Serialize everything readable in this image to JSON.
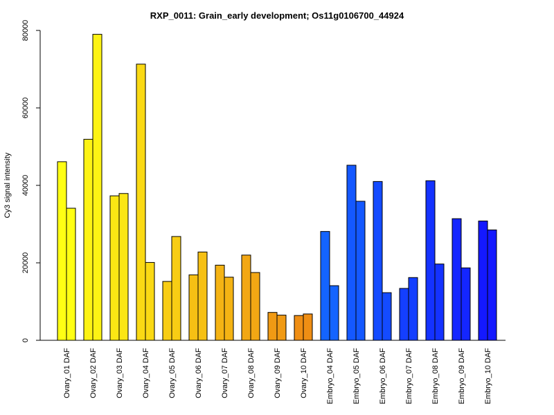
{
  "chart_data": {
    "type": "bar",
    "title": "RXP_0011: Grain_early development; Os11g0106700_44924",
    "xlabel": "",
    "ylabel": "Cy3 signal intensity",
    "ylim": [
      0,
      80000
    ],
    "yticks": [
      0,
      20000,
      40000,
      60000,
      80000
    ],
    "ytick_labels": [
      "0",
      "20000",
      "40000",
      "60000",
      "80000"
    ],
    "grid": false,
    "legend": "none",
    "bars_per_group": 2,
    "categories": [
      "Ovary_01 DAF",
      "Ovary_02 DAF",
      "Ovary_03 DAF",
      "Ovary_04 DAF",
      "Ovary_05 DAF",
      "Ovary_06 DAF",
      "Ovary_07 DAF",
      "Ovary_08 DAF",
      "Ovary_09 DAF",
      "Ovary_10 DAF",
      "Embryo_04 DAF",
      "Embryo_05 DAF",
      "Embryo_06 DAF",
      "Embryo_07 DAF",
      "Embryo_08 DAF",
      "Embryo_09 DAF",
      "Embryo_10 DAF"
    ],
    "values": [
      [
        46100,
        34100
      ],
      [
        51900,
        79000
      ],
      [
        37300,
        37900
      ],
      [
        71300,
        20100
      ],
      [
        15200,
        26800
      ],
      [
        16900,
        22800
      ],
      [
        19400,
        16300
      ],
      [
        22000,
        17500
      ],
      [
        7200,
        6500
      ],
      [
        6400,
        6800
      ],
      [
        28100,
        14100
      ],
      [
        45200,
        35900
      ],
      [
        41000,
        12300
      ],
      [
        13400,
        16200
      ],
      [
        41200,
        19700
      ],
      [
        31400,
        18700
      ],
      [
        30800,
        28500
      ]
    ],
    "colors": [
      "#ffff14",
      "#fdf314",
      "#fbe614",
      "#fad914",
      "#f8cd14",
      "#f6c014",
      "#f4b314",
      "#f2a714",
      "#f09a14",
      "#ef8e14",
      "#1464ff",
      "#1458ff",
      "#144bff",
      "#143fff",
      "#1432ff",
      "#1426ff",
      "#1419ff"
    ]
  }
}
